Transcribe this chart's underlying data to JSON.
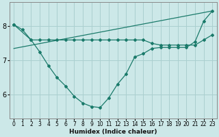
{
  "xlabel": "Humidex (Indice chaleur)",
  "bg_color": "#cce8e8",
  "grid_color": "#aacfcf",
  "line_color": "#1a7a6a",
  "xlim": [
    -0.5,
    23.5
  ],
  "ylim": [
    5.3,
    8.7
  ],
  "yticks": [
    6,
    7,
    8
  ],
  "xticks": [
    0,
    1,
    2,
    3,
    4,
    5,
    6,
    7,
    8,
    9,
    10,
    11,
    12,
    13,
    14,
    15,
    16,
    17,
    18,
    19,
    20,
    21,
    22,
    23
  ],
  "line1_x": [
    0,
    1,
    2,
    3,
    4,
    5,
    6,
    7,
    8,
    9,
    10,
    11,
    12,
    13,
    14,
    15,
    16,
    17,
    18,
    19,
    20,
    21,
    22,
    23
  ],
  "line1_y": [
    8.05,
    7.9,
    7.6,
    7.25,
    6.85,
    6.5,
    6.25,
    5.95,
    5.75,
    5.65,
    5.62,
    5.9,
    6.3,
    6.6,
    7.1,
    7.2,
    7.35,
    7.38,
    7.38,
    7.38,
    7.38,
    7.55,
    8.15,
    8.45
  ],
  "line2_x": [
    0,
    2,
    3,
    4,
    5,
    6,
    7,
    8,
    9,
    10,
    11,
    12,
    13,
    14,
    15,
    16,
    17,
    18,
    19,
    20,
    21,
    22,
    23
  ],
  "line2_y": [
    8.05,
    7.6,
    7.6,
    7.6,
    7.6,
    7.6,
    7.6,
    7.6,
    7.6,
    7.6,
    7.6,
    7.6,
    7.6,
    7.6,
    7.6,
    7.5,
    7.45,
    7.45,
    7.45,
    7.45,
    7.45,
    7.6,
    7.75
  ],
  "line3_x": [
    0,
    23
  ],
  "line3_y": [
    7.35,
    8.45
  ]
}
